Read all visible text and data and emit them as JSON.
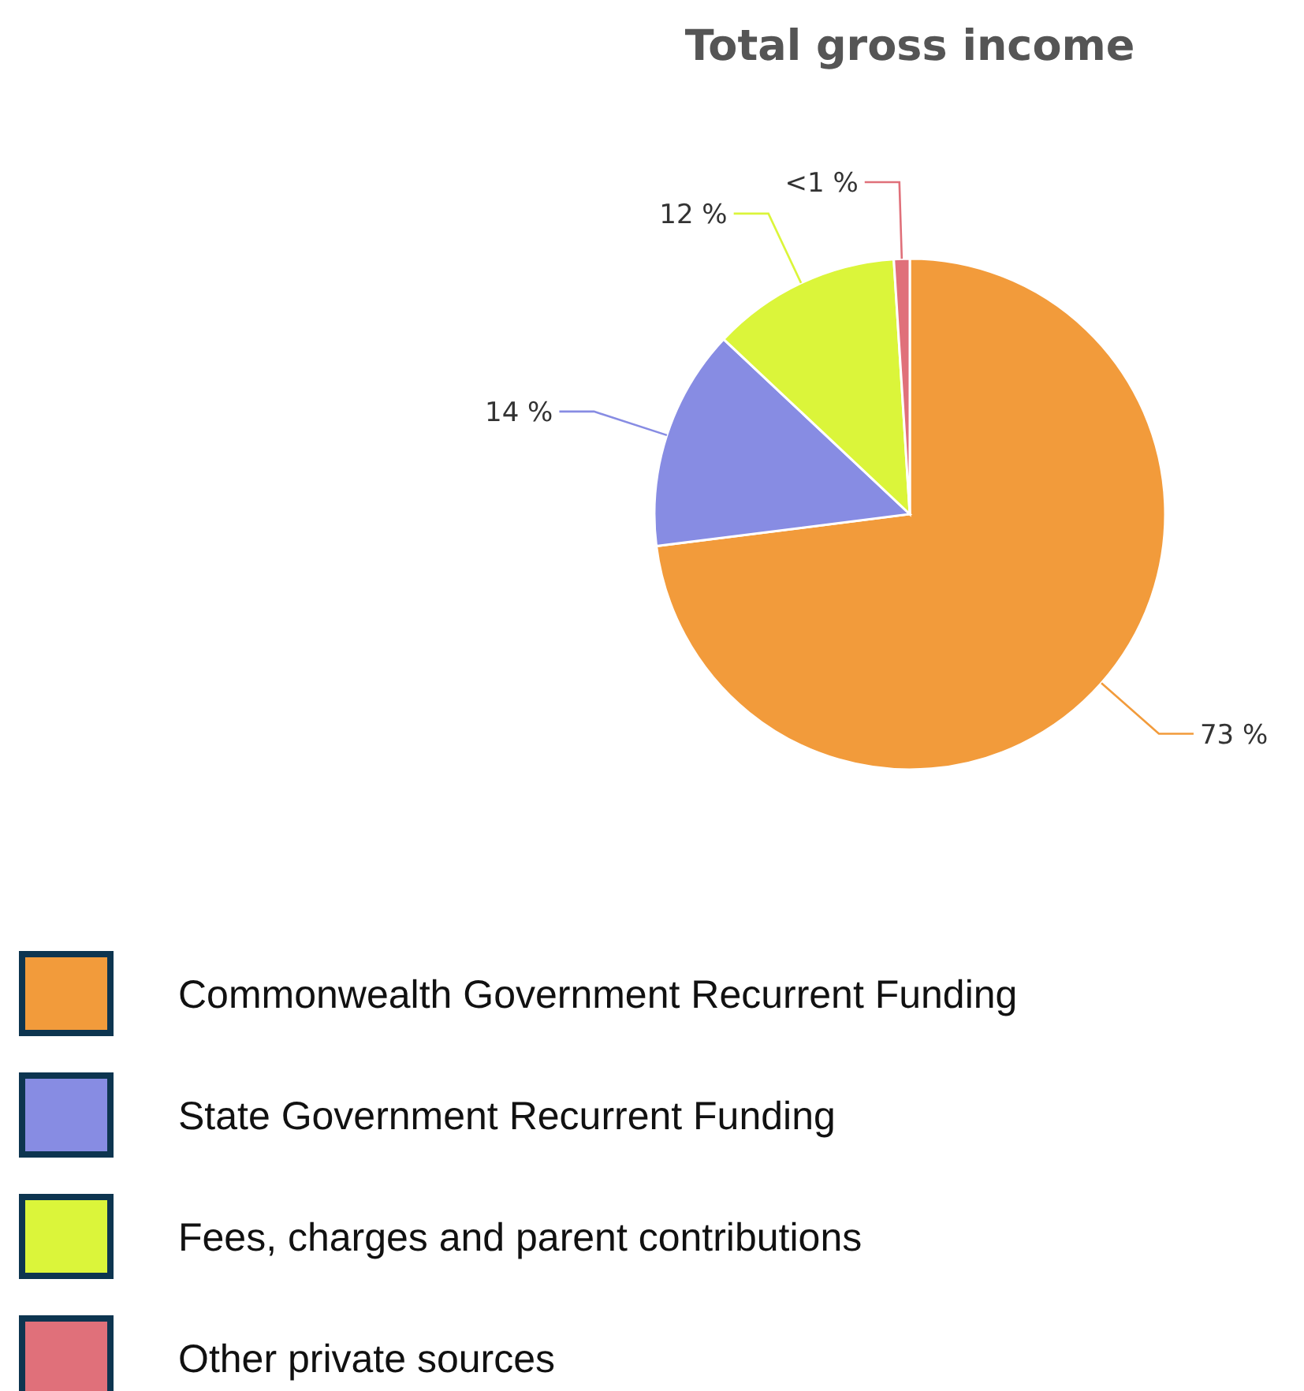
{
  "chart_data": {
    "type": "pie",
    "title": "Total gross income",
    "categories": [
      "Commonwealth Government Recurrent Funding",
      "State Government Recurrent Funding",
      "Fees, charges and parent contributions",
      "Other private sources"
    ],
    "values": [
      73,
      14,
      12,
      1
    ],
    "colors": [
      "#f29b3b",
      "#878ce3",
      "#dbf53a",
      "#e0707a"
    ],
    "value_labels": [
      "73 %",
      "14 %",
      "12 %",
      "<1 %"
    ],
    "legend": "bottom"
  }
}
